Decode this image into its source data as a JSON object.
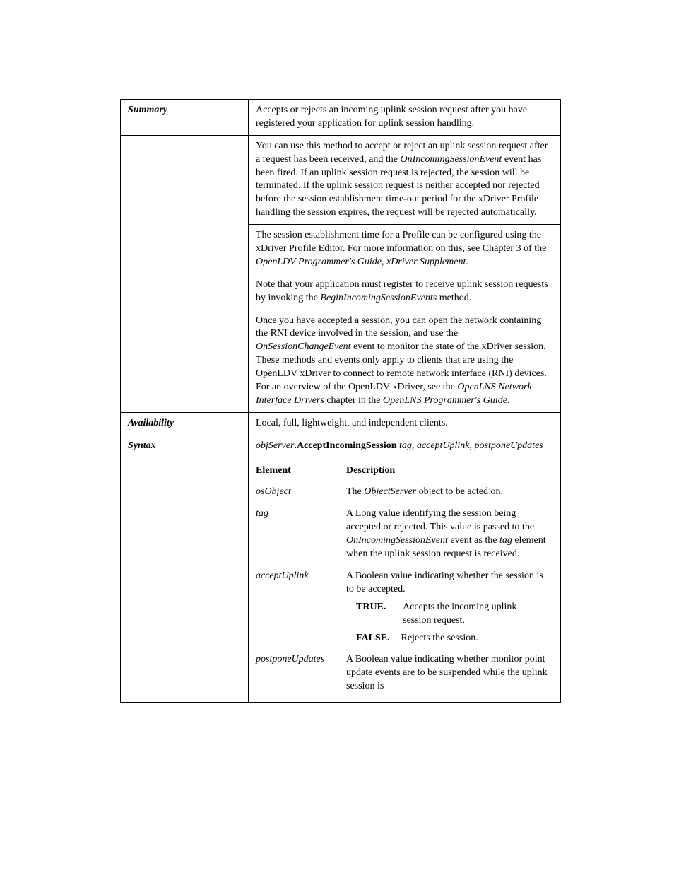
{
  "rows": {
    "summary": {
      "label": "Summary",
      "p1": "Accepts or rejects an incoming uplink session request after you have registered your application for uplink session handling.",
      "p2a": "You can use this method to accept or reject an uplink session request after a request has been received, and the ",
      "p2_term1": "OnIncomingSessionEvent",
      "p2b": " event has been fired. If an uplink session request is rejected, the session will be terminated. If the uplink session request is neither accepted nor rejected before the session establishment time-out period for the xDriver Profile handling the session expires, the request will be rejected automatically.",
      "p3a": "The session establishment time for a Profile can be configured using the xDriver Profile Editor. For more information on this, see Chapter 3 of the ",
      "p3_term1": "OpenLDV Programmer's Guide, xDriver Supplement",
      "p3b": ".",
      "p4a": "Note that your application must register to receive uplink session requests by invoking the ",
      "p4_term1": "BeginIncomingSessionEvents",
      "p4b": " method.",
      "p5a": "Once you have accepted a session, you can open the network containing the RNI device involved in the session, and use the ",
      "p5_term1": "OnSessionChangeEvent",
      "p5b": " event to monitor the state of the xDriver session. These methods and events only apply to clients that are using the OpenLDV xDriver to connect to remote network interface (RNI) devices. For an overview of the OpenLDV xDriver, see the ",
      "p5_term2": "OpenLNS Network Interface Drivers",
      "p5c": " chapter in the ",
      "p5_term3": "OpenLNS Programmer's Guide",
      "p5d": "."
    },
    "availability": {
      "label": "Availability",
      "text": "Local, full, lightweight, and independent clients."
    },
    "syntax": {
      "label": "Syntax",
      "sig_obj": "objServer",
      "sig_dot": ".",
      "sig_method": "AcceptIncomingSession",
      "sig_args": " tag, acceptUplink, postponeUpdates",
      "hdr_el": "Element",
      "hdr_desc": "Description",
      "params": {
        "osObject": {
          "name": "osObject",
          "desc_a": "The ",
          "desc_term": "ObjectServer",
          "desc_b": " object to be acted on."
        },
        "tag": {
          "name": "tag",
          "desc_a": "A Long value identifying the session being accepted or rejected. This value is passed to the ",
          "desc_term": "OnIncomingSessionEvent",
          "desc_b": " event as the ",
          "desc_term2": "tag",
          "desc_c": " element when the uplink session request is received."
        },
        "acceptUplink": {
          "name": "acceptUplink",
          "desc": "A Boolean value indicating whether the session is to be accepted.",
          "true_label": "TRUE",
          "true_text": "Accepts the incoming uplink session request.",
          "false_label": "FALSE",
          "false_text": "Rejects the session."
        },
        "postponeUpdates": {
          "name": "postponeUpdates",
          "desc": "A Boolean value indicating whether monitor point update events are to be suspended while the uplink session is"
        }
      }
    }
  }
}
